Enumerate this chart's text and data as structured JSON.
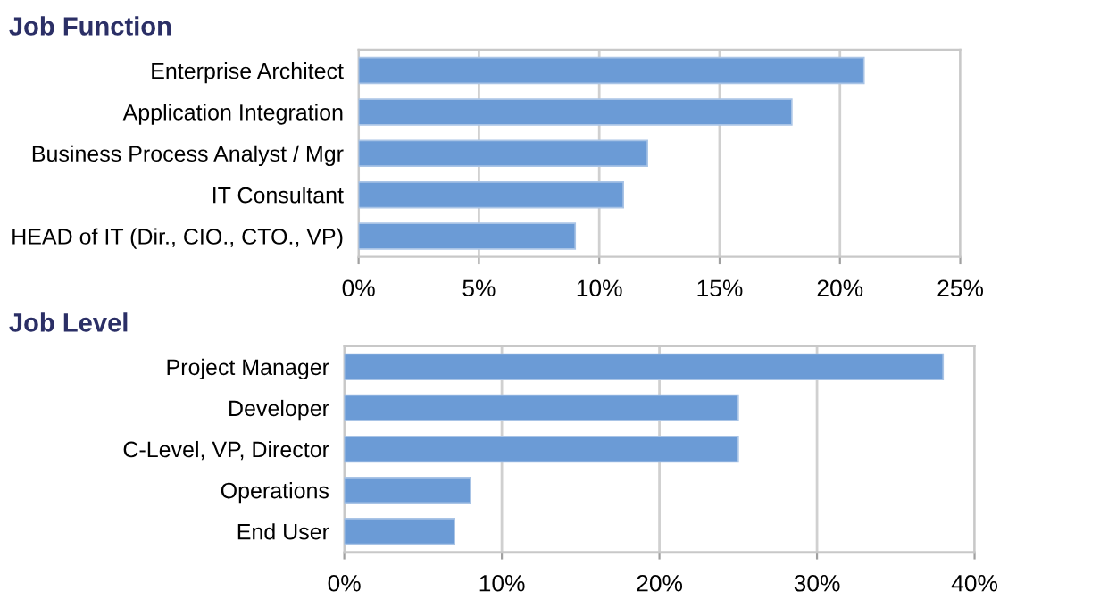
{
  "chart_data": [
    {
      "type": "bar",
      "orientation": "horizontal",
      "title": "Job Function",
      "categories": [
        "Enterprise Architect",
        "Application Integration",
        "Business Process Analyst / Mgr",
        "IT Consultant",
        "HEAD of IT (Dir., CIO., CTO., VP)"
      ],
      "values": [
        21,
        18,
        12,
        11,
        9
      ],
      "color": "#6b9bd6",
      "xlim": [
        0,
        25
      ],
      "xticks": [
        {
          "value": 0,
          "label": "0%"
        },
        {
          "value": 5,
          "label": "5%"
        },
        {
          "value": 10,
          "label": "10%"
        },
        {
          "value": 15,
          "label": "15%"
        },
        {
          "value": 20,
          "label": "20%"
        },
        {
          "value": 25,
          "label": "25%"
        }
      ],
      "grid": "x",
      "legend": false
    },
    {
      "type": "bar",
      "orientation": "horizontal",
      "title": "Job Level",
      "categories": [
        "Project Manager",
        "Developer",
        "C-Level, VP, Director",
        "Operations",
        "End User"
      ],
      "values": [
        38,
        25,
        25,
        8,
        7
      ],
      "color": "#6b9bd6",
      "xlim": [
        0,
        40
      ],
      "xticks": [
        {
          "value": 0,
          "label": "0%"
        },
        {
          "value": 10,
          "label": "10%"
        },
        {
          "value": 20,
          "label": "20%"
        },
        {
          "value": 30,
          "label": "30%"
        },
        {
          "value": 40,
          "label": "40%"
        }
      ],
      "grid": "x",
      "legend": false
    }
  ]
}
